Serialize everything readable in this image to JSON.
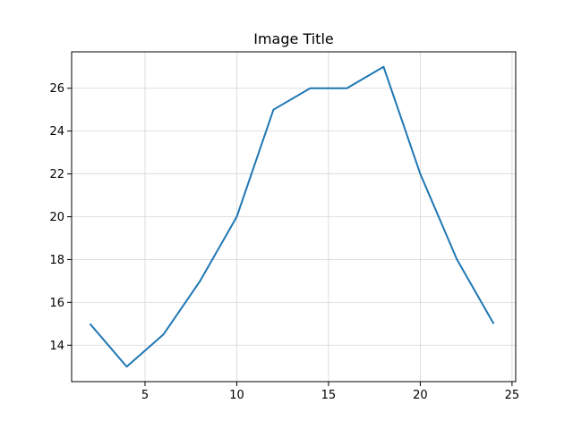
{
  "chart_data": {
    "type": "line",
    "title": "Image Title",
    "xlabel": "",
    "ylabel": "",
    "xlim": [
      1,
      25.2
    ],
    "ylim": [
      12.3,
      27.7
    ],
    "x_ticks": [
      5,
      10,
      15,
      20,
      25
    ],
    "y_ticks": [
      14,
      16,
      18,
      20,
      22,
      24,
      26
    ],
    "grid": true,
    "legend": null,
    "series": [
      {
        "color": "#1f77b4",
        "points": [
          {
            "x": 2,
            "y": 15
          },
          {
            "x": 4,
            "y": 13
          },
          {
            "x": 6,
            "y": 14.5
          },
          {
            "x": 8,
            "y": 17
          },
          {
            "x": 10,
            "y": 20
          },
          {
            "x": 12,
            "y": 25
          },
          {
            "x": 14,
            "y": 26
          },
          {
            "x": 16,
            "y": 26
          },
          {
            "x": 18,
            "y": 27
          },
          {
            "x": 20,
            "y": 22
          },
          {
            "x": 22,
            "y": 18
          },
          {
            "x": 24,
            "y": 15
          }
        ]
      }
    ]
  }
}
